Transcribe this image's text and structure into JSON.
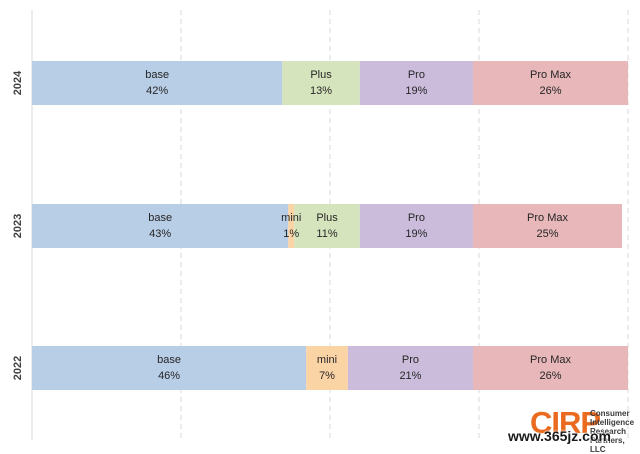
{
  "chart_data": {
    "type": "bar",
    "orientation": "horizontal",
    "stacked": "100%",
    "categories": [
      "2024",
      "2023",
      "2022"
    ],
    "series": [
      {
        "name": "base",
        "values": [
          42,
          43,
          46
        ],
        "labels": [
          "42%",
          "43%",
          "46%"
        ],
        "color": "#b8cde6"
      },
      {
        "name": "mini",
        "values": [
          0,
          1,
          7
        ],
        "labels": [
          "",
          "1%",
          "7%"
        ],
        "color": "#fbd4a6"
      },
      {
        "name": "Plus",
        "values": [
          13,
          11,
          0
        ],
        "labels": [
          "13%",
          "11%",
          ""
        ],
        "color": "#d6e4bd"
      },
      {
        "name": "Pro",
        "values": [
          19,
          19,
          21
        ],
        "labels": [
          "19%",
          "19%",
          "21%"
        ],
        "color": "#cbbcdc"
      },
      {
        "name": "Pro Max",
        "values": [
          26,
          25,
          26
        ],
        "labels": [
          "26%",
          "25%",
          "26%"
        ],
        "color": "#e7b7b9"
      }
    ],
    "xlim": [
      0,
      100
    ],
    "grid": "vertical-dashed",
    "legend": "none"
  },
  "logo": {
    "mark": "CIRP",
    "text": "Consumer Intelligence Research Partners, LLC"
  },
  "watermark": "www.365jz.com"
}
